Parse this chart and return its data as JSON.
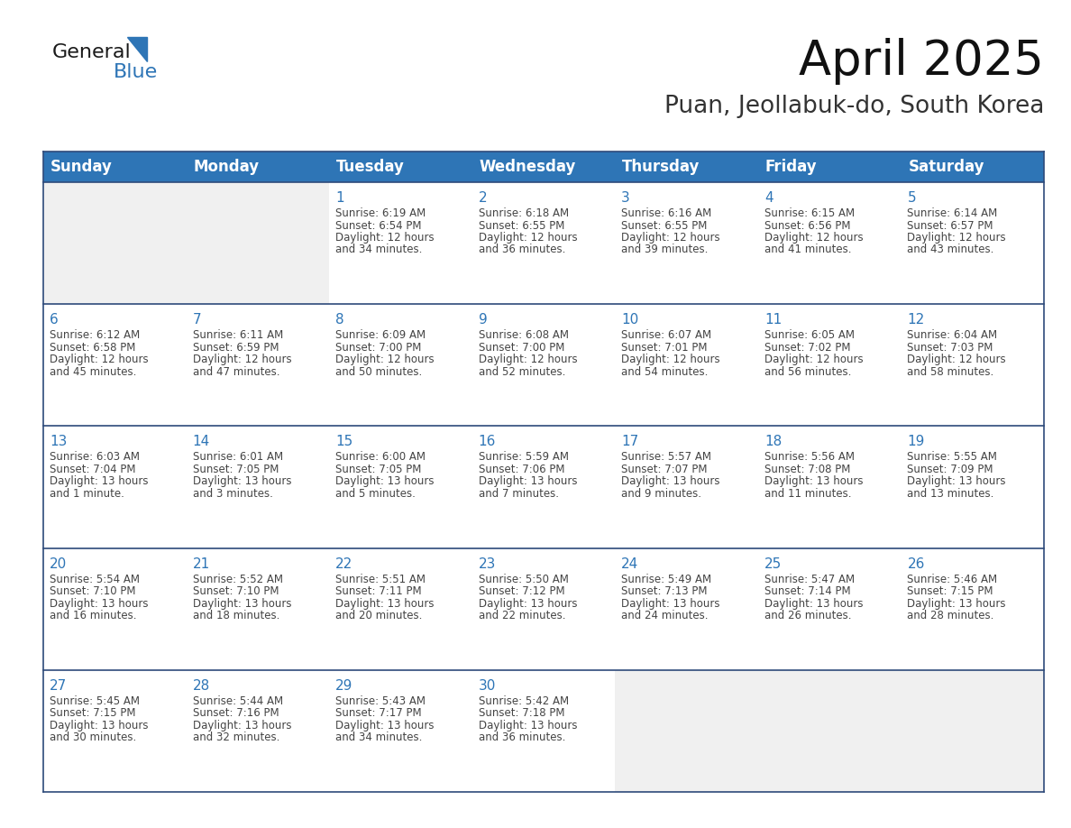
{
  "title": "April 2025",
  "subtitle": "Puan, Jeollabuk-do, South Korea",
  "header_bg_color": "#2E75B6",
  "header_text_color": "#FFFFFF",
  "cell_bg_color": "#FFFFFF",
  "empty_cell_bg_color": "#F0F0F0",
  "grid_line_color": "#2E4A7A",
  "outer_border_color": "#2E4A7A",
  "day_number_color": "#2E75B6",
  "cell_text_color": "#444444",
  "days_of_week": [
    "Sunday",
    "Monday",
    "Tuesday",
    "Wednesday",
    "Thursday",
    "Friday",
    "Saturday"
  ],
  "weeks": [
    [
      {
        "day": null,
        "sunrise": null,
        "sunset": null,
        "daylight": null
      },
      {
        "day": null,
        "sunrise": null,
        "sunset": null,
        "daylight": null
      },
      {
        "day": 1,
        "sunrise": "6:19 AM",
        "sunset": "6:54 PM",
        "daylight": "12 hours and 34 minutes."
      },
      {
        "day": 2,
        "sunrise": "6:18 AM",
        "sunset": "6:55 PM",
        "daylight": "12 hours and 36 minutes."
      },
      {
        "day": 3,
        "sunrise": "6:16 AM",
        "sunset": "6:55 PM",
        "daylight": "12 hours and 39 minutes."
      },
      {
        "day": 4,
        "sunrise": "6:15 AM",
        "sunset": "6:56 PM",
        "daylight": "12 hours and 41 minutes."
      },
      {
        "day": 5,
        "sunrise": "6:14 AM",
        "sunset": "6:57 PM",
        "daylight": "12 hours and 43 minutes."
      }
    ],
    [
      {
        "day": 6,
        "sunrise": "6:12 AM",
        "sunset": "6:58 PM",
        "daylight": "12 hours and 45 minutes."
      },
      {
        "day": 7,
        "sunrise": "6:11 AM",
        "sunset": "6:59 PM",
        "daylight": "12 hours and 47 minutes."
      },
      {
        "day": 8,
        "sunrise": "6:09 AM",
        "sunset": "7:00 PM",
        "daylight": "12 hours and 50 minutes."
      },
      {
        "day": 9,
        "sunrise": "6:08 AM",
        "sunset": "7:00 PM",
        "daylight": "12 hours and 52 minutes."
      },
      {
        "day": 10,
        "sunrise": "6:07 AM",
        "sunset": "7:01 PM",
        "daylight": "12 hours and 54 minutes."
      },
      {
        "day": 11,
        "sunrise": "6:05 AM",
        "sunset": "7:02 PM",
        "daylight": "12 hours and 56 minutes."
      },
      {
        "day": 12,
        "sunrise": "6:04 AM",
        "sunset": "7:03 PM",
        "daylight": "12 hours and 58 minutes."
      }
    ],
    [
      {
        "day": 13,
        "sunrise": "6:03 AM",
        "sunset": "7:04 PM",
        "daylight": "13 hours and 1 minute."
      },
      {
        "day": 14,
        "sunrise": "6:01 AM",
        "sunset": "7:05 PM",
        "daylight": "13 hours and 3 minutes."
      },
      {
        "day": 15,
        "sunrise": "6:00 AM",
        "sunset": "7:05 PM",
        "daylight": "13 hours and 5 minutes."
      },
      {
        "day": 16,
        "sunrise": "5:59 AM",
        "sunset": "7:06 PM",
        "daylight": "13 hours and 7 minutes."
      },
      {
        "day": 17,
        "sunrise": "5:57 AM",
        "sunset": "7:07 PM",
        "daylight": "13 hours and 9 minutes."
      },
      {
        "day": 18,
        "sunrise": "5:56 AM",
        "sunset": "7:08 PM",
        "daylight": "13 hours and 11 minutes."
      },
      {
        "day": 19,
        "sunrise": "5:55 AM",
        "sunset": "7:09 PM",
        "daylight": "13 hours and 13 minutes."
      }
    ],
    [
      {
        "day": 20,
        "sunrise": "5:54 AM",
        "sunset": "7:10 PM",
        "daylight": "13 hours and 16 minutes."
      },
      {
        "day": 21,
        "sunrise": "5:52 AM",
        "sunset": "7:10 PM",
        "daylight": "13 hours and 18 minutes."
      },
      {
        "day": 22,
        "sunrise": "5:51 AM",
        "sunset": "7:11 PM",
        "daylight": "13 hours and 20 minutes."
      },
      {
        "day": 23,
        "sunrise": "5:50 AM",
        "sunset": "7:12 PM",
        "daylight": "13 hours and 22 minutes."
      },
      {
        "day": 24,
        "sunrise": "5:49 AM",
        "sunset": "7:13 PM",
        "daylight": "13 hours and 24 minutes."
      },
      {
        "day": 25,
        "sunrise": "5:47 AM",
        "sunset": "7:14 PM",
        "daylight": "13 hours and 26 minutes."
      },
      {
        "day": 26,
        "sunrise": "5:46 AM",
        "sunset": "7:15 PM",
        "daylight": "13 hours and 28 minutes."
      }
    ],
    [
      {
        "day": 27,
        "sunrise": "5:45 AM",
        "sunset": "7:15 PM",
        "daylight": "13 hours and 30 minutes."
      },
      {
        "day": 28,
        "sunrise": "5:44 AM",
        "sunset": "7:16 PM",
        "daylight": "13 hours and 32 minutes."
      },
      {
        "day": 29,
        "sunrise": "5:43 AM",
        "sunset": "7:17 PM",
        "daylight": "13 hours and 34 minutes."
      },
      {
        "day": 30,
        "sunrise": "5:42 AM",
        "sunset": "7:18 PM",
        "daylight": "13 hours and 36 minutes."
      },
      {
        "day": null,
        "sunrise": null,
        "sunset": null,
        "daylight": null
      },
      {
        "day": null,
        "sunrise": null,
        "sunset": null,
        "daylight": null
      },
      {
        "day": null,
        "sunrise": null,
        "sunset": null,
        "daylight": null
      }
    ]
  ],
  "logo_general_color": "#1a1a1a",
  "logo_blue_color": "#2E75B6",
  "title_fontsize": 38,
  "subtitle_fontsize": 19,
  "header_fontsize": 12,
  "day_number_fontsize": 11,
  "cell_text_fontsize": 8.5
}
